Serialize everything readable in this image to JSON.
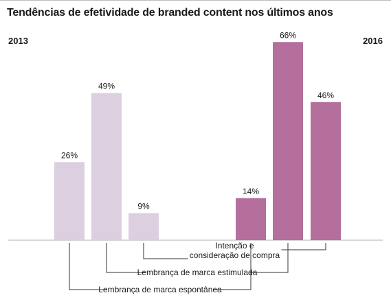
{
  "title": "Tendências de efetividade de branded content nos últimos anos",
  "years": {
    "left": "2013",
    "right": "2016"
  },
  "chart_data": {
    "type": "bar",
    "title": "Tendências de efetividade de branded content nos últimos anos",
    "categories": [
      "Lembrança de marca espontânea",
      "Lembrança de marca estimulada",
      "Intenção e consideração de compra"
    ],
    "category_label_lines": [
      [
        "Lembrança de marca espontânea"
      ],
      [
        "Lembrança de marca estimulada"
      ],
      [
        "Intenção e",
        "consideração de compra"
      ]
    ],
    "series": [
      {
        "name": "2013",
        "values": [
          26,
          49,
          9
        ],
        "labels": [
          "26%",
          "49%",
          "9%"
        ],
        "color": "#dccfdf"
      },
      {
        "name": "2016",
        "values": [
          14,
          66,
          46
        ],
        "labels": [
          "14%",
          "66%",
          "46%"
        ],
        "color": "#b46f9d"
      }
    ],
    "grid": false,
    "legend": "none"
  }
}
